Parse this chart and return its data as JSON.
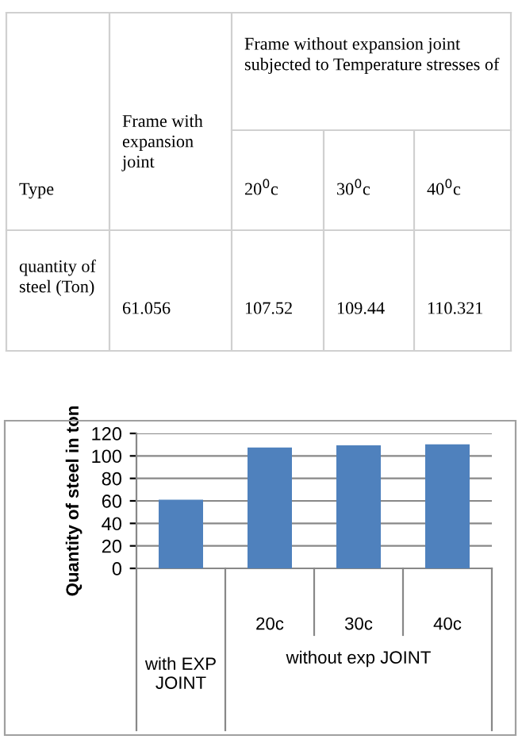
{
  "chart_data": {
    "type": "bar",
    "ylabel": "Quantity of steel in ton",
    "categories": [
      null,
      "20c",
      "30c",
      "40c"
    ],
    "values": [
      61.056,
      107.52,
      109.44,
      110.321
    ],
    "value_labels": [
      "61.056",
      "107.52",
      "109.44",
      "110.321"
    ],
    "color": "#4f81bd",
    "ylim": [
      0,
      120
    ],
    "yticks": [
      0,
      20,
      40,
      60,
      80,
      100,
      120
    ],
    "grid": "y",
    "annotations": [
      "Type",
      "Frame with expansion joint",
      "Frame without expansion joint subjected to Temperature stresses of",
      "20$^{0}$c",
      "30$^{0}$c",
      "40$^{0}$c",
      "quantity of steel (Ton)",
      "with EXP JOINT",
      "without exp JOINT"
    ]
  }
}
